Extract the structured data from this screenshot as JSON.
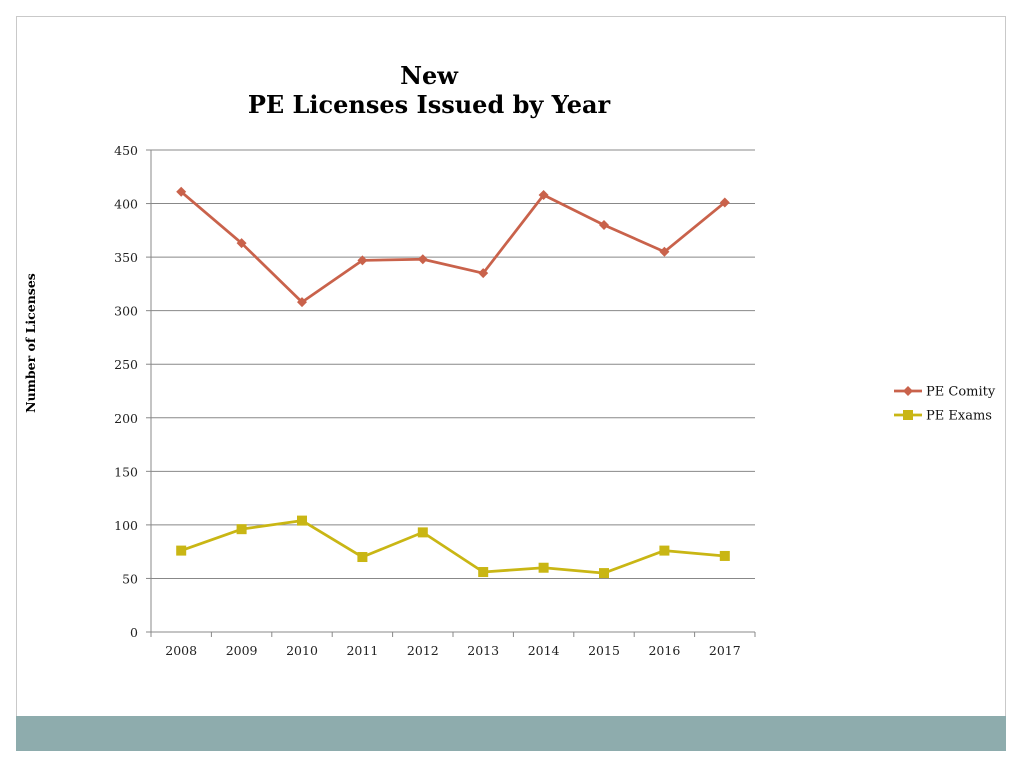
{
  "chart_data": {
    "type": "line",
    "title_lines": [
      "New",
      "PE Licenses Issued by Year"
    ],
    "xlabel": "",
    "ylabel": "Number of Licenses",
    "categories": [
      "2008",
      "2009",
      "2010",
      "2011",
      "2012",
      "2013",
      "2014",
      "2015",
      "2016",
      "2017"
    ],
    "ylim": [
      0,
      450
    ],
    "yticks": [
      0,
      50,
      100,
      150,
      200,
      250,
      300,
      350,
      400,
      450
    ],
    "grid": true,
    "legend_position": "right",
    "series": [
      {
        "name": "PE Comity",
        "marker": "diamond",
        "color": "#c9624b",
        "values": [
          411,
          363,
          308,
          347,
          348,
          335,
          408,
          380,
          355,
          401
        ]
      },
      {
        "name": "PE Exams",
        "marker": "square",
        "color": "#c9b614",
        "values": [
          76,
          96,
          104,
          70,
          93,
          56,
          60,
          55,
          76,
          71
        ]
      }
    ]
  },
  "theme": {
    "footer_bar_color": "#8eacad",
    "gridline_color": "#888888"
  }
}
